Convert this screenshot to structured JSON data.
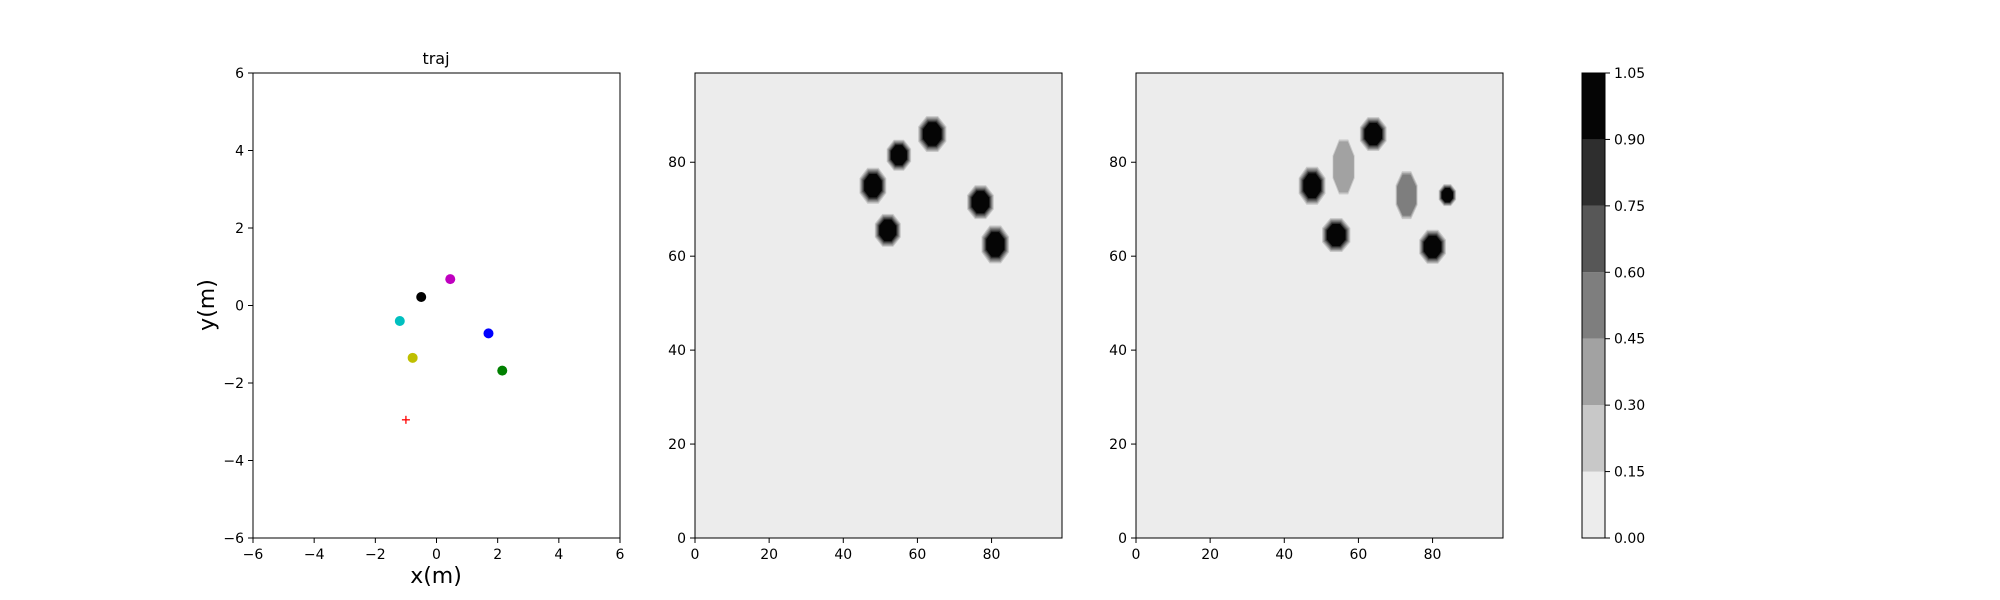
{
  "chart_data": [
    {
      "type": "scatter",
      "title": "traj",
      "xlabel": "x(m)",
      "ylabel": "y(m)",
      "xlim": [
        -6,
        6
      ],
      "ylim": [
        -6,
        6
      ],
      "xticks": [
        -6,
        -4,
        -2,
        0,
        2,
        4,
        6
      ],
      "yticks": [
        -6,
        -4,
        -2,
        0,
        2,
        4,
        6
      ],
      "points": [
        {
          "x": -0.5,
          "y": 0.22,
          "color": "#000000",
          "marker": "circle"
        },
        {
          "x": 0.45,
          "y": 0.68,
          "color": "#bf00bf",
          "marker": "circle"
        },
        {
          "x": -1.2,
          "y": -0.4,
          "color": "#00bfbf",
          "marker": "circle"
        },
        {
          "x": 1.7,
          "y": -0.72,
          "color": "#0000ff",
          "marker": "circle"
        },
        {
          "x": -0.78,
          "y": -1.35,
          "color": "#bfbf00",
          "marker": "circle"
        },
        {
          "x": 2.15,
          "y": -1.68,
          "color": "#008000",
          "marker": "circle"
        },
        {
          "x": -1.0,
          "y": -2.95,
          "color": "#ff0000",
          "marker": "plus"
        }
      ],
      "grid": false
    },
    {
      "type": "heatmap",
      "title": "",
      "xlim": [
        0,
        99
      ],
      "ylim": [
        0,
        99
      ],
      "xticks": [
        0,
        20,
        40,
        60,
        80
      ],
      "yticks": [
        0,
        20,
        40,
        60,
        80
      ],
      "background_level": 0.0,
      "blobs": [
        {
          "x": 64,
          "y": 86,
          "rx": 3.6,
          "ry": 3.6,
          "level": 1.0
        },
        {
          "x": 55,
          "y": 81.5,
          "rx": 3.1,
          "ry": 3.1,
          "level": 1.0
        },
        {
          "x": 48,
          "y": 75,
          "rx": 3.4,
          "ry": 3.6,
          "level": 1.0
        },
        {
          "x": 77,
          "y": 71.5,
          "rx": 3.4,
          "ry": 3.4,
          "level": 1.0
        },
        {
          "x": 52,
          "y": 65.5,
          "rx": 3.3,
          "ry": 3.3,
          "level": 1.0
        },
        {
          "x": 81,
          "y": 62.5,
          "rx": 3.5,
          "ry": 3.8,
          "level": 1.0
        }
      ]
    },
    {
      "type": "heatmap",
      "title": "",
      "xlim": [
        0,
        99
      ],
      "ylim": [
        0,
        99
      ],
      "xticks": [
        0,
        20,
        40,
        60,
        80
      ],
      "yticks": [
        0,
        20,
        40,
        60,
        80
      ],
      "background_level": 0.0,
      "blobs": [
        {
          "x": 64,
          "y": 86,
          "rx": 3.4,
          "ry": 3.4,
          "level": 0.95
        },
        {
          "x": 47.5,
          "y": 75,
          "rx": 3.4,
          "ry": 3.8,
          "level": 0.95
        },
        {
          "x": 56,
          "y": 79,
          "rx": 2.8,
          "ry": 5.5,
          "level": 0.35
        },
        {
          "x": 73,
          "y": 73,
          "rx": 2.8,
          "ry": 4.8,
          "level": 0.45
        },
        {
          "x": 84,
          "y": 73,
          "rx": 2.2,
          "ry": 2.2,
          "level": 0.9
        },
        {
          "x": 54,
          "y": 64.5,
          "rx": 3.6,
          "ry": 3.4,
          "level": 0.95
        },
        {
          "x": 80,
          "y": 62,
          "rx": 3.4,
          "ry": 3.4,
          "level": 0.9
        }
      ]
    },
    {
      "type": "colorbar",
      "levels": [
        0.0,
        0.15,
        0.3,
        0.45,
        0.6,
        0.75,
        0.9,
        1.05
      ],
      "tick_labels": [
        "0.00",
        "0.15",
        "0.30",
        "0.45",
        "0.60",
        "0.75",
        "0.90",
        "1.05"
      ],
      "colors": [
        "#ececec",
        "#c8c8c8",
        "#a2a2a2",
        "#7e7e7e",
        "#575757",
        "#2e2e2e",
        "#050505"
      ]
    }
  ]
}
